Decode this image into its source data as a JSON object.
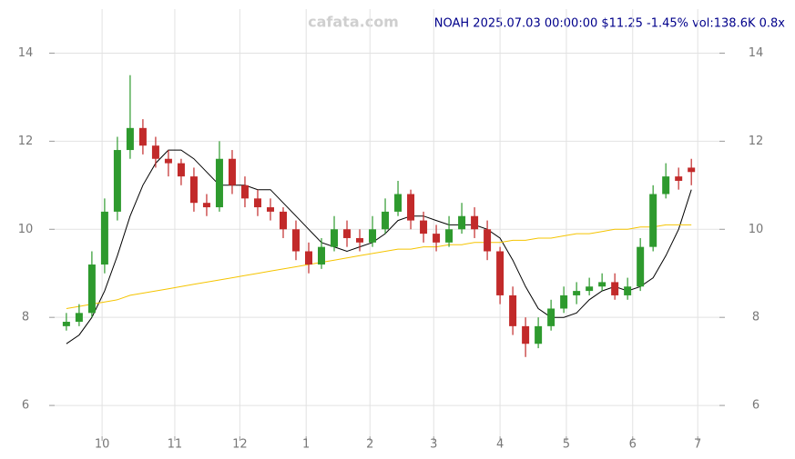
{
  "chart_data": {
    "type": "candlestick",
    "title": "NOAH 2025.07.03 00:00:00 $11.25 -1.45% vol:138.6K 0.8x",
    "watermark": "cafata.com",
    "x": [
      0,
      5,
      10,
      15,
      20,
      25,
      30,
      35,
      40,
      45,
      50,
      55,
      60,
      65,
      70,
      75,
      80,
      85,
      90,
      95,
      100,
      105,
      110,
      115,
      120,
      125,
      130,
      135,
      140,
      145,
      150,
      155,
      160,
      165,
      170,
      175,
      180,
      185,
      190,
      195,
      200,
      205,
      210,
      215,
      220,
      225,
      230,
      235,
      240,
      245
    ],
    "open": [
      7.8,
      7.9,
      8.1,
      9.2,
      10.4,
      11.8,
      12.3,
      11.9,
      11.6,
      11.5,
      11.2,
      10.6,
      10.5,
      11.6,
      11.0,
      10.7,
      10.5,
      10.4,
      10.0,
      9.5,
      9.2,
      9.6,
      10.0,
      9.8,
      9.7,
      10.0,
      10.4,
      10.8,
      10.2,
      9.9,
      9.7,
      10.0,
      10.3,
      10.0,
      9.5,
      8.5,
      7.8,
      7.4,
      7.8,
      8.2,
      8.5,
      8.6,
      8.7,
      8.8,
      8.5,
      8.7,
      9.6,
      10.8,
      11.2,
      11.4
    ],
    "high": [
      8.1,
      8.3,
      9.5,
      10.7,
      12.1,
      13.5,
      12.5,
      12.1,
      11.8,
      11.6,
      11.4,
      10.8,
      12.0,
      11.8,
      11.2,
      10.9,
      10.7,
      10.5,
      10.2,
      9.7,
      9.8,
      10.3,
      10.2,
      10.0,
      10.3,
      10.7,
      11.1,
      10.9,
      10.4,
      10.1,
      10.3,
      10.6,
      10.5,
      10.2,
      9.6,
      8.7,
      8.0,
      8.0,
      8.4,
      8.7,
      8.8,
      8.9,
      9.0,
      9.0,
      8.9,
      9.8,
      11.0,
      11.5,
      11.4,
      11.6
    ],
    "low": [
      7.7,
      7.8,
      8.0,
      9.0,
      10.2,
      11.6,
      11.7,
      11.4,
      11.2,
      11.0,
      10.4,
      10.3,
      10.4,
      10.8,
      10.5,
      10.3,
      10.2,
      9.8,
      9.3,
      9.0,
      9.1,
      9.5,
      9.6,
      9.5,
      9.6,
      9.9,
      10.3,
      10.0,
      9.7,
      9.5,
      9.6,
      9.9,
      9.8,
      9.3,
      8.3,
      7.6,
      7.1,
      7.3,
      7.7,
      8.1,
      8.3,
      8.5,
      8.6,
      8.4,
      8.4,
      8.6,
      9.5,
      10.7,
      10.9,
      11.0
    ],
    "close": [
      7.9,
      8.1,
      9.2,
      10.4,
      11.8,
      12.3,
      11.9,
      11.6,
      11.5,
      11.2,
      10.6,
      10.5,
      11.6,
      11.0,
      10.7,
      10.5,
      10.4,
      10.0,
      9.5,
      9.2,
      9.6,
      10.0,
      9.8,
      9.7,
      10.0,
      10.4,
      10.8,
      10.2,
      9.9,
      9.7,
      10.0,
      10.3,
      10.0,
      9.5,
      8.5,
      7.8,
      7.4,
      7.8,
      8.2,
      8.5,
      8.6,
      8.7,
      8.8,
      8.5,
      8.7,
      9.6,
      10.8,
      11.2,
      11.1,
      11.3
    ],
    "up_color": "#2e9a2e",
    "down_color": "#c22a2a",
    "series": [
      {
        "color": "#000000",
        "values": [
          7.4,
          7.6,
          8.0,
          8.6,
          9.4,
          10.3,
          11.0,
          11.5,
          11.8,
          11.8,
          11.6,
          11.3,
          11.0,
          11.0,
          11.0,
          10.9,
          10.9,
          10.6,
          10.3,
          10.0,
          9.7,
          9.6,
          9.5,
          9.6,
          9.7,
          9.9,
          10.2,
          10.3,
          10.3,
          10.2,
          10.1,
          10.1,
          10.1,
          10.0,
          9.8,
          9.3,
          8.7,
          8.2,
          8.0,
          8.0,
          8.1,
          8.4,
          8.6,
          8.7,
          8.6,
          8.7,
          8.9,
          9.4,
          10.0,
          10.9
        ]
      },
      {
        "color": "#f5c400",
        "values": [
          8.2,
          8.25,
          8.3,
          8.35,
          8.4,
          8.5,
          8.55,
          8.6,
          8.65,
          8.7,
          8.75,
          8.8,
          8.85,
          8.9,
          8.95,
          9.0,
          9.05,
          9.1,
          9.15,
          9.2,
          9.25,
          9.3,
          9.35,
          9.4,
          9.45,
          9.5,
          9.55,
          9.55,
          9.6,
          9.6,
          9.65,
          9.65,
          9.7,
          9.7,
          9.7,
          9.75,
          9.75,
          9.8,
          9.8,
          9.85,
          9.9,
          9.9,
          9.95,
          10.0,
          10.0,
          10.05,
          10.05,
          10.1,
          10.1,
          10.1
        ]
      }
    ],
    "xlim": [
      -4.6,
      256
    ],
    "xticks": [
      {
        "value": 14,
        "label": "10"
      },
      {
        "value": 42.5,
        "label": "11"
      },
      {
        "value": 68,
        "label": "12"
      },
      {
        "value": 94,
        "label": "1"
      },
      {
        "value": 119,
        "label": "2"
      },
      {
        "value": 144,
        "label": "3"
      },
      {
        "value": 170,
        "label": "4"
      },
      {
        "value": 196,
        "label": "5"
      },
      {
        "value": 222,
        "label": "6"
      },
      {
        "value": 247.5,
        "label": "7"
      }
    ],
    "ylim": [
      5.3,
      15
    ],
    "yticks": [
      6,
      8,
      10,
      12,
      14
    ],
    "grid": true
  }
}
